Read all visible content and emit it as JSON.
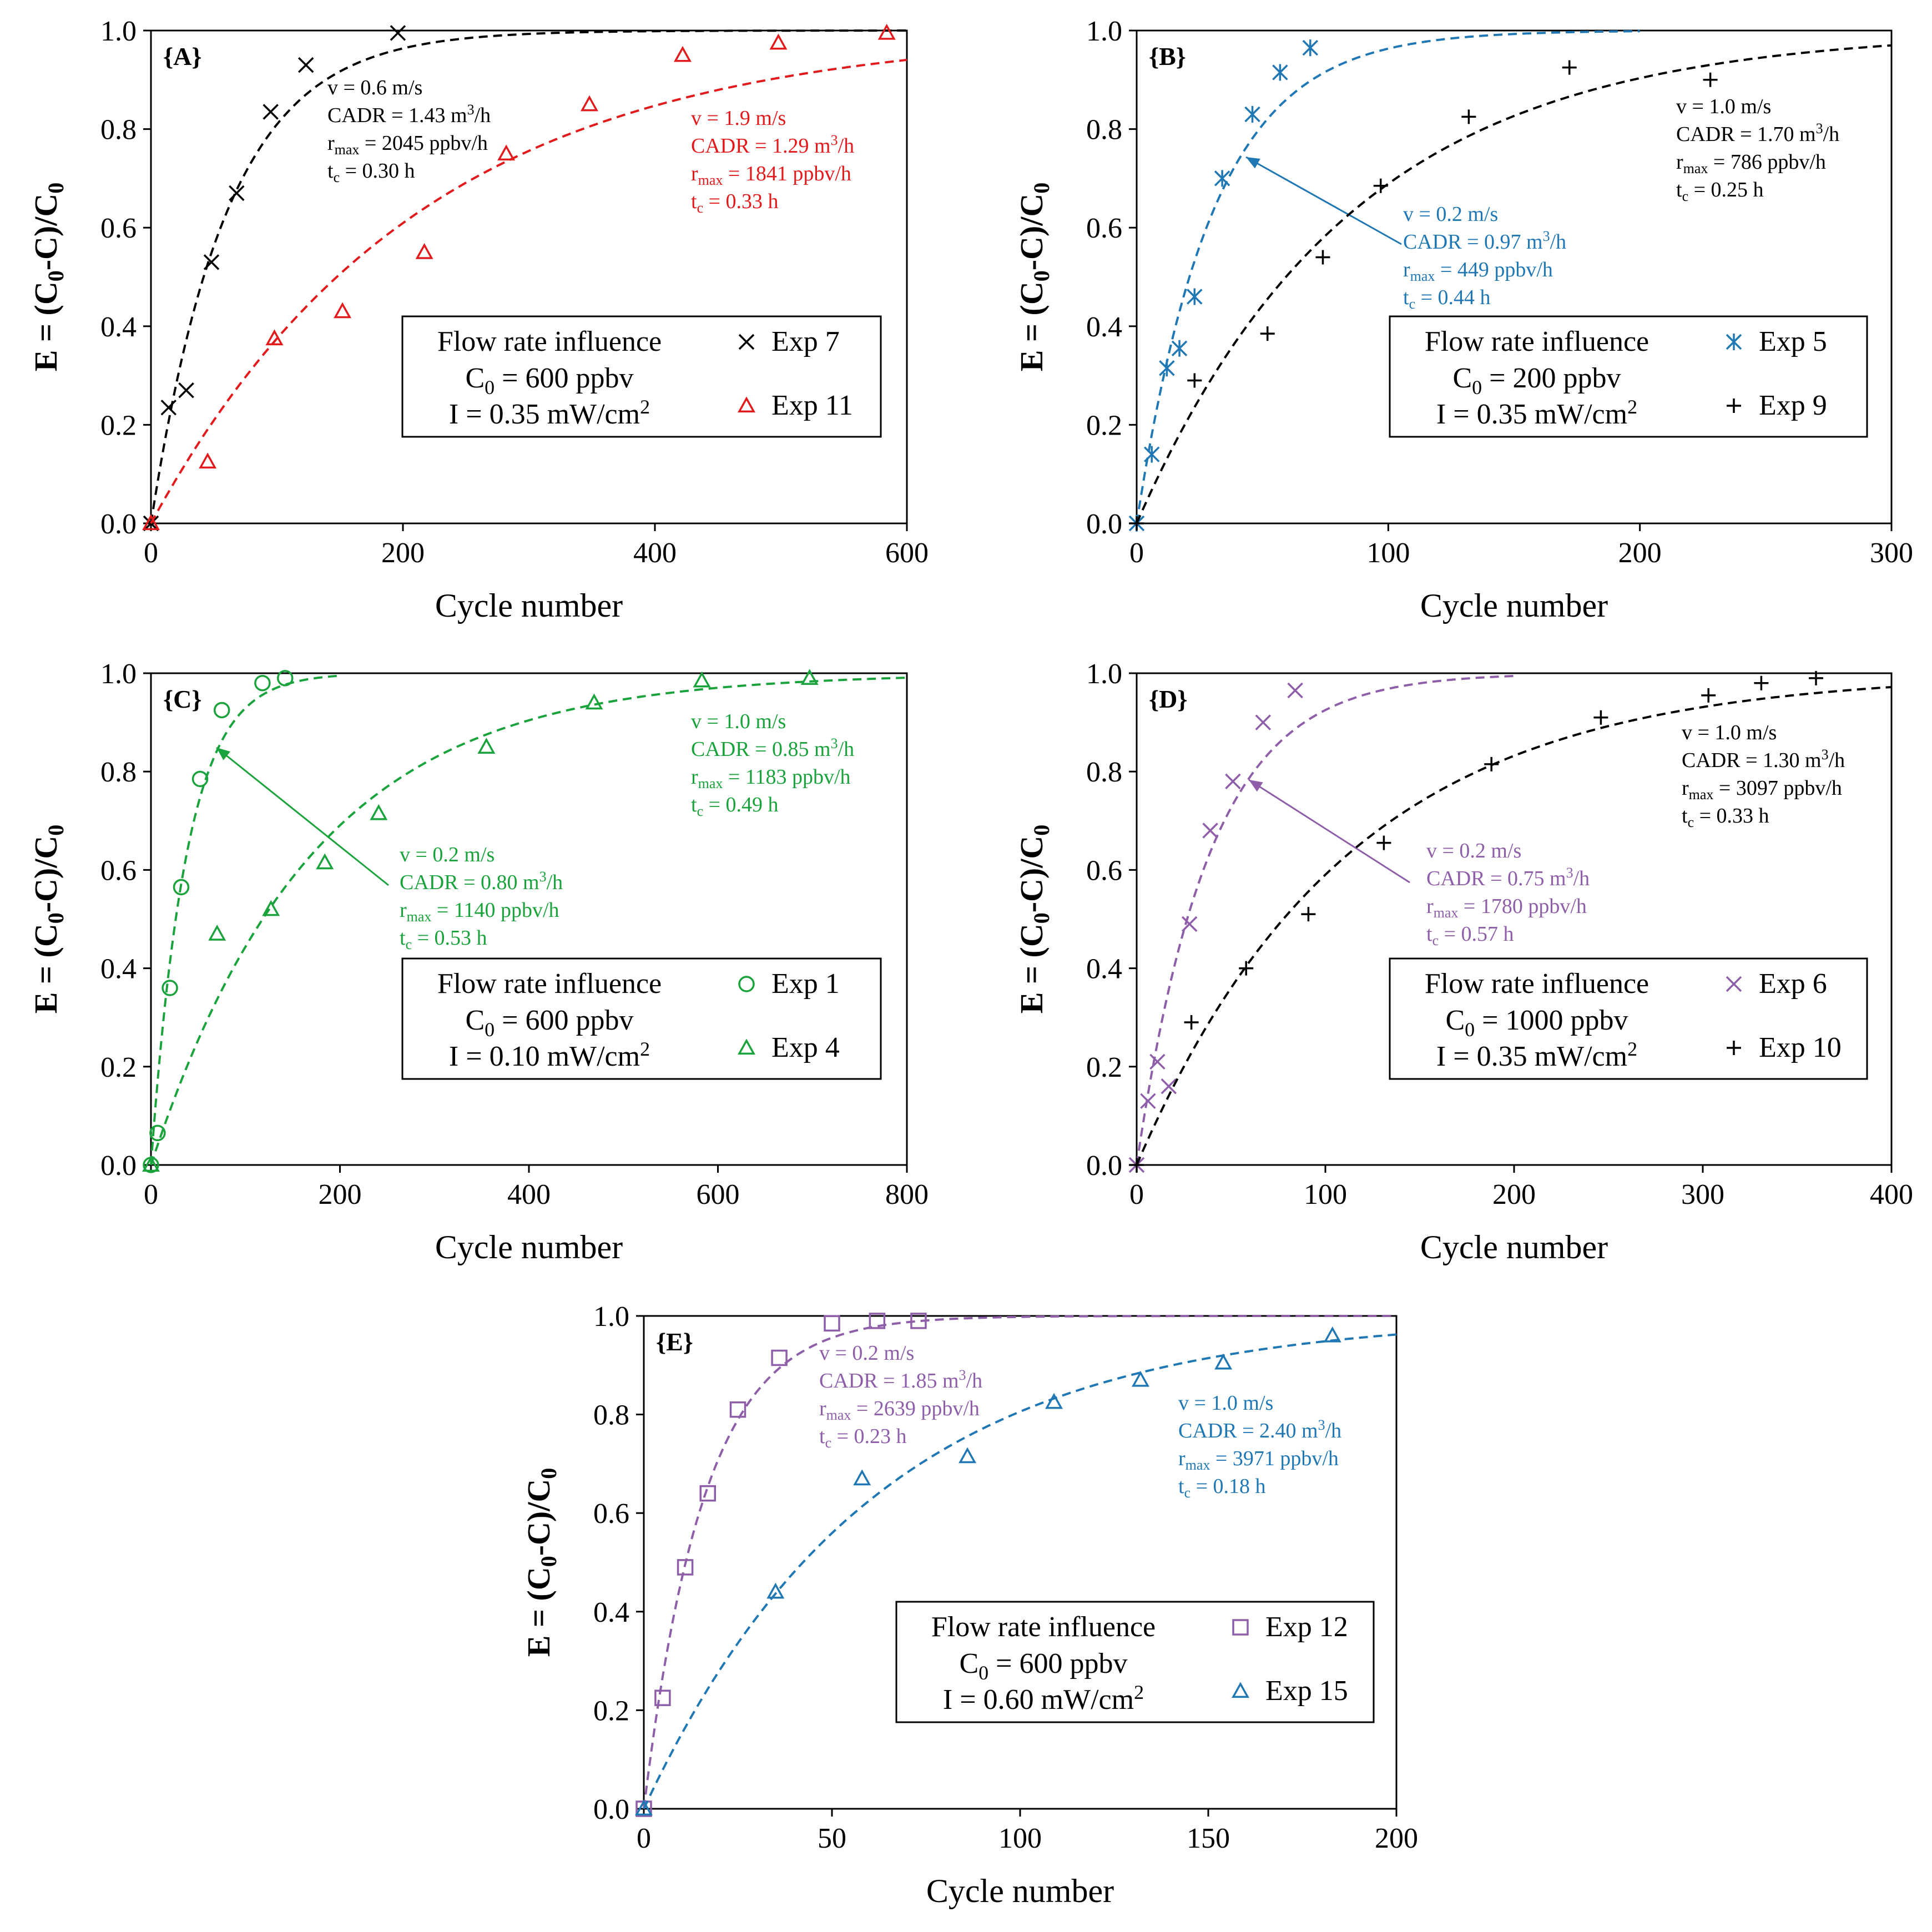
{
  "figure": {
    "background": "#ffffff"
  },
  "chart_data": [
    {
      "id": "A",
      "type": "scatter",
      "panel_label": "{A}",
      "xlabel": "Cycle number",
      "ylabel_parts": [
        "E = (C",
        "0",
        "-C)/C",
        "0"
      ],
      "xlim": [
        0,
        600
      ],
      "ylim": [
        0,
        1
      ],
      "xticks": [
        "0",
        "200",
        "400",
        "600"
      ],
      "yticks": [
        "0.0",
        "0.2",
        "0.4",
        "0.6",
        "0.8",
        "1.0"
      ],
      "legend": {
        "title": "Flow rate influence",
        "c0": {
          "pre": "C",
          "sub": "0",
          "post": " = 600 ppbv"
        },
        "intensity": {
          "pre": "I = 0.35  mW/cm",
          "sup": "2"
        }
      },
      "series": [
        {
          "name": "Exp 7",
          "color": "#000000",
          "marker": "x",
          "xmax_fit": 600,
          "x": [
            0,
            14,
            28,
            48,
            68,
            95,
            123,
            196
          ],
          "y": [
            0.0,
            0.235,
            0.27,
            0.53,
            0.67,
            0.835,
            0.93,
            0.995
          ],
          "annotation": {
            "v": "v = 0.6 m/s",
            "cadr": "CADR = 1.43 m",
            "cadr_sup": "3",
            "cadr_unit": "/h",
            "r_pre": "r",
            "r_sub": "max",
            "r_post": " = 2045 ppbv/h",
            "t_pre": "t",
            "t_sub": "c",
            "t_post": " = 0.30 h"
          }
        },
        {
          "name": "Exp 11",
          "color": "#e31a1c",
          "marker": "triangle",
          "xmax_fit": 600,
          "x": [
            0,
            45,
            98,
            152,
            217,
            282,
            348,
            422,
            498,
            584
          ],
          "y": [
            0.0,
            0.125,
            0.375,
            0.43,
            0.55,
            0.75,
            0.85,
            0.95,
            0.975,
            0.995
          ],
          "annotation": {
            "v": "v = 1.9 m/s",
            "cadr": "CADR = 1.29 m",
            "cadr_sup": "3",
            "cadr_unit": "/h",
            "r_pre": "r",
            "r_sub": "max",
            "r_post": " = 1841 ppbv/h",
            "t_pre": "t",
            "t_sub": "c",
            "t_post": " = 0.33 h"
          }
        }
      ]
    },
    {
      "id": "B",
      "type": "scatter",
      "panel_label": "{B}",
      "xlabel": "Cycle number",
      "ylabel_parts": [
        "E = (C",
        "0",
        "-C)/C",
        "0"
      ],
      "xlim": [
        0,
        300
      ],
      "ylim": [
        0,
        1
      ],
      "xticks": [
        "0",
        "100",
        "200",
        "300"
      ],
      "yticks": [
        "0.0",
        "0.2",
        "0.4",
        "0.6",
        "0.8",
        "1.0"
      ],
      "legend": {
        "title": "Flow rate influence",
        "c0": {
          "pre": "C",
          "sub": "0",
          "post": " = 200 ppbv"
        },
        "intensity": {
          "pre": "I = 0.35  mW/cm",
          "sup": "2"
        }
      },
      "series": [
        {
          "name": "Exp 5",
          "color": "#1f77b4",
          "marker": "asterisk",
          "xmax_fit": 200,
          "x": [
            0,
            6,
            12,
            17,
            23,
            34,
            46,
            57,
            69
          ],
          "y": [
            0.0,
            0.14,
            0.315,
            0.355,
            0.46,
            0.7,
            0.83,
            0.915,
            0.965
          ],
          "annotation": {
            "v": "v = 0.2 m/s",
            "cadr": "CADR = 0.97 m",
            "cadr_sup": "3",
            "cadr_unit": "/h",
            "r_pre": "r",
            "r_sub": "max",
            "r_post": " = 449 ppbv/h",
            "t_pre": "t",
            "t_sub": "c",
            "t_post": " = 0.44 h"
          }
        },
        {
          "name": "Exp 9",
          "color": "#000000",
          "marker": "plus",
          "xmax_fit": 300,
          "x": [
            0,
            23,
            52,
            74,
            97,
            132,
            172,
            228
          ],
          "y": [
            0.0,
            0.29,
            0.385,
            0.54,
            0.685,
            0.825,
            0.925,
            0.9
          ],
          "annotation": {
            "v": "v = 1.0 m/s",
            "cadr": "CADR = 1.70 m",
            "cadr_sup": "3",
            "cadr_unit": "/h",
            "r_pre": "r",
            "r_sub": "max",
            "r_post": " = 786 ppbv/h",
            "t_pre": "t",
            "t_sub": "c",
            "t_post": " = 0.25 h"
          }
        }
      ]
    },
    {
      "id": "C",
      "type": "scatter",
      "panel_label": "{C}",
      "xlabel": "Cycle number",
      "ylabel_parts": [
        "E = (C",
        "0",
        "-C)/C",
        "0"
      ],
      "xlim": [
        0,
        800
      ],
      "ylim": [
        0,
        1
      ],
      "xticks": [
        "0",
        "200",
        "400",
        "600",
        "800"
      ],
      "yticks": [
        "0.0",
        "0.2",
        "0.4",
        "0.6",
        "0.8",
        "1.0"
      ],
      "legend": {
        "title": "Flow rate influence",
        "c0": {
          "pre": "C",
          "sub": "0",
          "post": " = 600 ppbv"
        },
        "intensity": {
          "pre": "I = 0.10  mW/cm",
          "sup": "2"
        }
      },
      "series": [
        {
          "name": "Exp 1",
          "color": "#1aa33c",
          "marker": "circle",
          "xmax_fit": 200,
          "x": [
            0,
            7,
            20,
            32,
            52,
            75,
            118,
            142
          ],
          "y": [
            0.0,
            0.065,
            0.36,
            0.565,
            0.785,
            0.925,
            0.98,
            0.99
          ],
          "annotation": {
            "v": "v = 0.2 m/s",
            "cadr": "CADR = 0.80 m",
            "cadr_sup": "3",
            "cadr_unit": "/h",
            "r_pre": "r",
            "r_sub": "max",
            "r_post": " = 1140 ppbv/h",
            "t_pre": "t",
            "t_sub": "c",
            "t_post": " = 0.53 h"
          }
        },
        {
          "name": "Exp 4",
          "color": "#1aa33c",
          "marker": "triangle",
          "xmax_fit": 800,
          "x": [
            0,
            70,
            127,
            184,
            241,
            355,
            469,
            583,
            697
          ],
          "y": [
            0.0,
            0.47,
            0.52,
            0.615,
            0.715,
            0.85,
            0.94,
            0.985,
            0.99
          ],
          "annotation": {
            "v": "v = 1.0 m/s",
            "cadr": "CADR = 0.85 m",
            "cadr_sup": "3",
            "cadr_unit": "/h",
            "r_pre": "r",
            "r_sub": "max",
            "r_post": " = 1183 ppbv/h",
            "t_pre": "t",
            "t_sub": "c",
            "t_post": " = 0.49 h"
          }
        }
      ]
    },
    {
      "id": "D",
      "type": "scatter",
      "panel_label": "{D}",
      "xlabel": "Cycle number",
      "ylabel_parts": [
        "E = (C",
        "0",
        "-C)/C",
        "0"
      ],
      "xlim": [
        0,
        400
      ],
      "ylim": [
        0,
        1
      ],
      "xticks": [
        "0",
        "100",
        "200",
        "300",
        "400"
      ],
      "yticks": [
        "0.0",
        "0.2",
        "0.4",
        "0.6",
        "0.8",
        "1.0"
      ],
      "legend": {
        "title": "Flow rate influence",
        "c0": {
          "pre": "C",
          "sub": "0",
          "post": " = 1000 ppbv"
        },
        "intensity": {
          "pre": "I = 0.35  mW/cm",
          "sup": "2"
        }
      },
      "series": [
        {
          "name": "Exp 6",
          "color": "#8e5fa8",
          "marker": "x",
          "xmax_fit": 200,
          "x": [
            0,
            6,
            11,
            17,
            28,
            39,
            51,
            67,
            84
          ],
          "y": [
            0.0,
            0.13,
            0.21,
            0.16,
            0.49,
            0.68,
            0.78,
            0.9,
            0.965
          ],
          "annotation": {
            "v": "v = 0.2 m/s",
            "cadr": "CADR = 0.75 m",
            "cadr_sup": "3",
            "cadr_unit": "/h",
            "r_pre": "r",
            "r_sub": "max",
            "r_post": " = 1780 ppbv/h",
            "t_pre": "t",
            "t_sub": "c",
            "t_post": " = 0.57 h"
          }
        },
        {
          "name": "Exp 10",
          "color": "#000000",
          "marker": "plus",
          "xmax_fit": 400,
          "x": [
            0,
            29,
            58,
            91,
            131,
            188,
            246,
            303,
            331,
            360
          ],
          "y": [
            0.0,
            0.29,
            0.4,
            0.51,
            0.655,
            0.815,
            0.91,
            0.955,
            0.98,
            0.99
          ],
          "annotation": {
            "v": "v = 1.0 m/s",
            "cadr": "CADR = 1.30 m",
            "cadr_sup": "3",
            "cadr_unit": "/h",
            "r_pre": "r",
            "r_sub": "max",
            "r_post": " = 3097 ppbv/h",
            "t_pre": "t",
            "t_sub": "c",
            "t_post": " = 0.33 h"
          }
        }
      ]
    },
    {
      "id": "E",
      "type": "scatter",
      "panel_label": "{E}",
      "xlabel": "Cycle number",
      "ylabel_parts": [
        "E = (C",
        "0",
        "-C)/C",
        "0"
      ],
      "xlim": [
        0,
        200
      ],
      "ylim": [
        0,
        1
      ],
      "xticks": [
        "0",
        "50",
        "100",
        "150",
        "200"
      ],
      "yticks": [
        "0.0",
        "0.2",
        "0.4",
        "0.6",
        "0.8",
        "1.0"
      ],
      "legend": {
        "title": "Flow rate influence",
        "c0": {
          "pre": "C",
          "sub": "0",
          "post": " = 600 ppbv"
        },
        "intensity": {
          "pre": "I = 0.60  mW/cm",
          "sup": "2"
        }
      },
      "series": [
        {
          "name": "Exp 12",
          "color": "#8e5fa8",
          "marker": "square",
          "xmax_fit": 200,
          "x": [
            0,
            5,
            11,
            17,
            25,
            36,
            50,
            62,
            73
          ],
          "y": [
            0.0,
            0.225,
            0.49,
            0.64,
            0.81,
            0.915,
            0.985,
            0.99,
            0.99
          ],
          "annotation": {
            "v": "v = 0.2 m/s",
            "cadr": "CADR = 1.85 m",
            "cadr_sup": "3",
            "cadr_unit": "/h",
            "r_pre": "r",
            "r_sub": "max",
            "r_post": " = 2639 ppbv/h",
            "t_pre": "t",
            "t_sub": "c",
            "t_post": " = 0.23 h"
          }
        },
        {
          "name": "Exp 15",
          "color": "#1f77b4",
          "marker": "triangle",
          "xmax_fit": 200,
          "x": [
            0,
            35,
            58,
            86,
            109,
            132,
            154,
            183
          ],
          "y": [
            0.0,
            0.44,
            0.67,
            0.715,
            0.825,
            0.87,
            0.905,
            0.96
          ],
          "annotation": {
            "v": "v = 1.0 m/s",
            "cadr": "CADR = 2.40 m",
            "cadr_sup": "3",
            "cadr_unit": "/h",
            "r_pre": "r",
            "r_sub": "max",
            "r_post": " =  3971 ppbv/h",
            "t_pre": "t",
            "t_sub": "c",
            "t_post": " = 0.18 h"
          }
        }
      ]
    }
  ]
}
